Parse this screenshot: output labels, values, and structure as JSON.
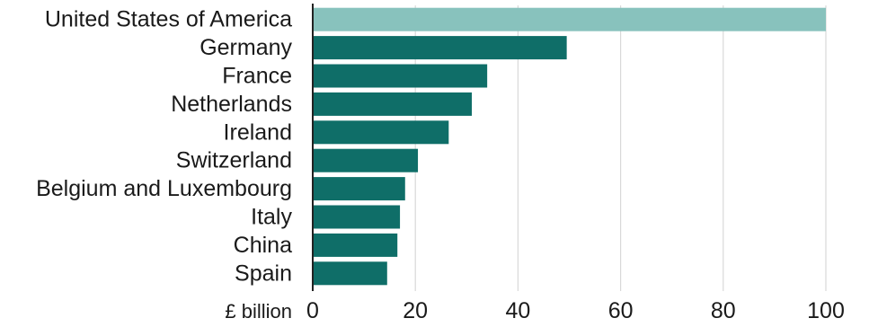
{
  "chart_data": {
    "type": "bar",
    "orientation": "horizontal",
    "categories": [
      "United States of America",
      "Germany",
      "France",
      "Netherlands",
      "Ireland",
      "Switzerland",
      "Belgium and Luxembourg",
      "Italy",
      "China",
      "Spain"
    ],
    "values": [
      100,
      49.5,
      34,
      31,
      26.5,
      20.5,
      18,
      17,
      16.5,
      14.5
    ],
    "highlight_index": 0,
    "xlim": [
      0,
      100
    ],
    "xticks": [
      0,
      20,
      40,
      60,
      80,
      100
    ],
    "unit_label": "£ billion",
    "grid": true,
    "colors": {
      "bar": "#0f6e68",
      "highlight": "#88c2bd",
      "grid": "#d9d9d9",
      "axis": "#222222"
    }
  }
}
